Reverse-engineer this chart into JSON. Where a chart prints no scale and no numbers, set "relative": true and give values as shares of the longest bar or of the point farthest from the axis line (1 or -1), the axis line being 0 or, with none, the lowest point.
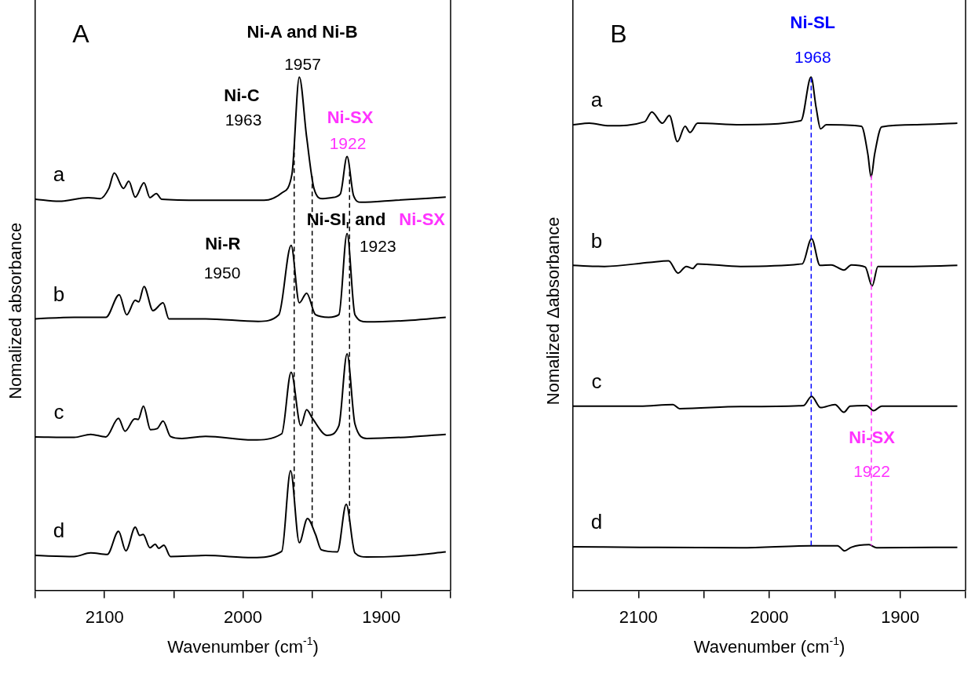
{
  "chart_data": [
    {
      "type": "line",
      "title": "A",
      "xlabel": "Wavenumber (cm$^{-1}$)",
      "ylabel": "Nomalized absorbance",
      "relative": true,
      "xlim": [
        2150,
        1850
      ],
      "xticks": [
        {
          "value": 2150,
          "label": null
        },
        2100,
        {
          "value": 2050,
          "label": null
        },
        2000,
        {
          "value": 1950,
          "label": null
        },
        1900,
        {
          "value": 1850,
          "label": null
        }
      ],
      "legend": false,
      "grid": false,
      "marker": "none",
      "line_style": "solid",
      "tick_labels": "x",
      "series": [
        {
          "name": "a",
          "color": "#000000",
          "x": [
            2150,
            2132.8,
            2111.7,
            2103.2,
            2096.9,
            2093,
            2086.3,
            2082.5,
            2077.8,
            2071.5,
            2067.2,
            2062.6,
            2058.8,
            2027,
            1984.7,
            1972,
            1964.6,
            1959.3,
            1954,
            1948.7,
            1942.4,
            1936,
            1929.7,
            1924.8,
            1920.1,
            1914.8,
            1889.5,
            1853.5
          ],
          "values": [
            0.762,
            0.758,
            0.765,
            0.763,
            0.783,
            0.813,
            0.783,
            0.797,
            0.766,
            0.794,
            0.765,
            0.773,
            0.762,
            0.76,
            0.76,
            0.774,
            0.811,
            1,
            0.883,
            0.783,
            0.763,
            0.765,
            0.772,
            0.845,
            0.769,
            0.756,
            0.76,
            0.766
          ]
        },
        {
          "name": "b",
          "color": "#000000",
          "x": [
            2150,
            2122,
            2099,
            2089.4,
            2084,
            2077.8,
            2075.3,
            2071.5,
            2065,
            2057.7,
            2053.5,
            2027,
            1989,
            1974.1,
            1965.2,
            1959.3,
            1954,
            1947.6,
            1938.1,
            1930.7,
            1924.8,
            1919.1,
            1910.6,
            1878.9,
            1853.5
          ],
          "values": [
            0.529,
            0.532,
            0.532,
            0.576,
            0.537,
            0.565,
            0.562,
            0.592,
            0.545,
            0.56,
            0.529,
            0.529,
            0.524,
            0.537,
            0.672,
            0.56,
            0.579,
            0.537,
            0.532,
            0.537,
            0.695,
            0.537,
            0.523,
            0.526,
            0.532
          ]
        },
        {
          "name": "c",
          "color": "#000000",
          "x": [
            2150,
            2122,
            2110,
            2099,
            2089.9,
            2085.2,
            2078.2,
            2075.7,
            2071.9,
            2066.8,
            2062,
            2057.7,
            2052.4,
            2044,
            2027,
            1993.2,
            1972,
            1965.2,
            1958.2,
            1954,
            1949.8,
            1939.2,
            1930.7,
            1924.8,
            1919.1,
            1910.6,
            1878.9,
            1853.5
          ],
          "values": [
            0.299,
            0.298,
            0.304,
            0.299,
            0.335,
            0.31,
            0.334,
            0.333,
            0.359,
            0.313,
            0.315,
            0.33,
            0.3,
            0.296,
            0.3,
            0.293,
            0.305,
            0.425,
            0.321,
            0.352,
            0.335,
            0.302,
            0.321,
            0.461,
            0.324,
            0.296,
            0.299,
            0.304
          ]
        },
        {
          "name": "d",
          "color": "#000000",
          "x": [
            2150,
            2122,
            2110,
            2098,
            2089.9,
            2084.6,
            2077.8,
            2074.6,
            2072.1,
            2067.2,
            2063.4,
            2060.9,
            2057.1,
            2052.4,
            2027,
            1993.2,
            1972,
            1965.6,
            1959.3,
            1953.4,
            1947.6,
            1943.4,
            1931.8,
            1925.4,
            1919.1,
            1910.6,
            1878.9,
            1853.5
          ],
          "values": [
            0.068,
            0.066,
            0.073,
            0.07,
            0.115,
            0.077,
            0.123,
            0.107,
            0.109,
            0.083,
            0.09,
            0.082,
            0.088,
            0.066,
            0.068,
            0.064,
            0.076,
            0.233,
            0.093,
            0.14,
            0.109,
            0.079,
            0.075,
            0.168,
            0.073,
            0.065,
            0.068,
            0.075
          ]
        }
      ],
      "ref_lines": [
        {
          "axis": "x",
          "value": 1963,
          "color": "#000000",
          "line_style": "dashed"
        },
        {
          "axis": "x",
          "value": 1950,
          "color": "#000000",
          "line_style": "dashed"
        },
        {
          "axis": "x",
          "value": 1923,
          "color": "#000000",
          "line_style": "dashed"
        }
      ],
      "annotations": [
        "Ni-A and Ni-B",
        "1957",
        "Ni-C",
        "1963",
        "Ni-SX",
        "1922",
        "Ni-SI$_{r}$ and",
        "Ni-SX",
        "1923",
        "Ni-R",
        "1950"
      ]
    },
    {
      "type": "line",
      "title": "B",
      "xlabel": "Wavenumber (cm$^{-1}$)",
      "ylabel": "Nomalized Δabsorbance",
      "relative": true,
      "xlim": [
        2150,
        1850
      ],
      "xticks": [
        {
          "value": 2150,
          "label": null
        },
        2100,
        {
          "value": 2050,
          "label": null
        },
        2000,
        {
          "value": 1950,
          "label": null
        },
        1900,
        {
          "value": 1850,
          "label": null
        }
      ],
      "legend": false,
      "grid": false,
      "marker": "none",
      "line_style": "solid",
      "tick_labels": "x",
      "series": [
        {
          "name": "a",
          "color": "#000000",
          "x": [
            2150,
            2137.6,
            2122.2,
            2095.2,
            2089.8,
            2081.8,
            2076.4,
            2070.2,
            2064.4,
            2060.6,
            2054.8,
            2022,
            1975.8,
            1968.1,
            1964.2,
            1960.8,
            1956.5,
            1929.6,
            1924.7,
            1922.2,
            1919.5,
            1914.1,
            1887.2,
            1856.3
          ],
          "values": [
            0.907,
            0.91,
            0.905,
            0.913,
            0.932,
            0.91,
            0.925,
            0.874,
            0.904,
            0.892,
            0.91,
            0.907,
            0.915,
            1,
            0.94,
            0.899,
            0.907,
            0.904,
            0.85,
            0.805,
            0.85,
            0.903,
            0.907,
            0.91
          ]
        },
        {
          "name": "b",
          "color": "#000000",
          "x": [
            2150,
            2126,
            2091.4,
            2077,
            2069.8,
            2063.5,
            2058.6,
            2054.8,
            2022,
            1974.8,
            1967.7,
            1961.3,
            1952.7,
            1943,
            1937.3,
            1926.7,
            1921.4,
            1917,
            1894.9,
            1856.3
          ],
          "values": [
            0.633,
            0.631,
            0.639,
            0.642,
            0.618,
            0.631,
            0.627,
            0.636,
            0.631,
            0.636,
            0.685,
            0.633,
            0.634,
            0.624,
            0.634,
            0.63,
            0.593,
            0.631,
            0.631,
            0.633
          ]
        },
        {
          "name": "c",
          "color": "#000000",
          "x": [
            2150,
            2099,
            2073.7,
            2068.6,
            2022,
            1973.8,
            1967.7,
            1960.8,
            1949.8,
            1943,
            1938.2,
            1925.7,
            1920.3,
            1914.1,
            1856.3
          ],
          "values": [
            0.359,
            0.359,
            0.362,
            0.354,
            0.358,
            0.36,
            0.378,
            0.356,
            0.362,
            0.347,
            0.359,
            0.36,
            0.35,
            0.359,
            0.359
          ]
        },
        {
          "name": "d",
          "color": "#000000",
          "x": [
            2150,
            2099,
            2022,
            1968.1,
            1947.8,
            1942.6,
            1937.3,
            1923.8,
            1918,
            1856.3
          ],
          "values": [
            0.085,
            0.084,
            0.083,
            0.087,
            0.087,
            0.077,
            0.084,
            0.089,
            0.083,
            0.084
          ]
        }
      ],
      "ref_lines": [
        {
          "axis": "x",
          "value": 1968,
          "color": "#0000ff",
          "line_style": "dashed"
        },
        {
          "axis": "x",
          "value": 1922,
          "color": "#ff33ff",
          "line_style": "dashed"
        }
      ],
      "annotations": [
        "Ni-SL",
        "1968",
        "Ni-SX",
        "1922"
      ]
    }
  ]
}
